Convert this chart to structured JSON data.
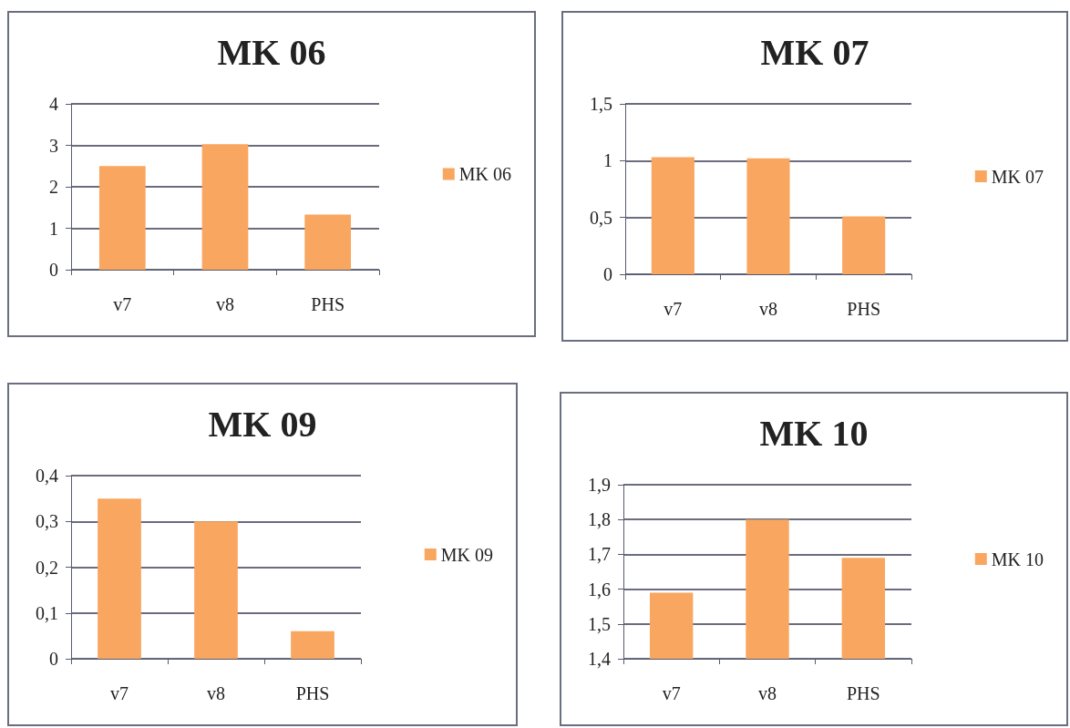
{
  "chart_data": [
    {
      "type": "bar",
      "title": "MK 06",
      "categories": [
        "v7",
        "v8",
        "PHS"
      ],
      "series": [
        {
          "name": "MK 06",
          "color": "#f9a660",
          "values": [
            2.5,
            3.03,
            1.33
          ]
        }
      ],
      "ylim": [
        0,
        4
      ],
      "yticks": [
        0,
        1,
        2,
        3,
        4
      ],
      "grid": "y",
      "legend": "right"
    },
    {
      "type": "bar",
      "title": "MK 07",
      "categories": [
        "v7",
        "v8",
        "PHS"
      ],
      "series": [
        {
          "name": "MK 07",
          "color": "#f9a660",
          "values": [
            1.03,
            1.02,
            0.51
          ]
        }
      ],
      "ylim": [
        0,
        1.5
      ],
      "yticks": [
        0,
        {
          "value": 0.5,
          "label": "0,5"
        },
        1,
        {
          "value": 1.5,
          "label": "1,5"
        }
      ],
      "grid": "y",
      "legend": "right"
    },
    {
      "type": "bar",
      "title": "MK 09",
      "categories": [
        "v7",
        "v8",
        "PHS"
      ],
      "series": [
        {
          "name": "MK 09",
          "color": "#f9a660",
          "values": [
            0.35,
            0.3,
            0.06
          ]
        }
      ],
      "ylim": [
        0,
        0.4
      ],
      "yticks": [
        0,
        {
          "value": 0.1,
          "label": "0,1"
        },
        {
          "value": 0.2,
          "label": "0,2"
        },
        {
          "value": 0.3,
          "label": "0,3"
        },
        {
          "value": 0.4,
          "label": "0,4"
        }
      ],
      "grid": "y",
      "legend": "right"
    },
    {
      "type": "bar",
      "title": "MK 10",
      "categories": [
        "v7",
        "v8",
        "PHS"
      ],
      "series": [
        {
          "name": "MK 10",
          "color": "#f9a660",
          "values": [
            1.59,
            1.8,
            1.69
          ]
        }
      ],
      "ylim": [
        1.4,
        1.9
      ],
      "yticks": [
        {
          "value": 1.4,
          "label": "1,4"
        },
        {
          "value": 1.5,
          "label": "1,5"
        },
        {
          "value": 1.6,
          "label": "1,6"
        },
        {
          "value": 1.7,
          "label": "1,7"
        },
        {
          "value": 1.8,
          "label": "1,8"
        },
        {
          "value": 1.9,
          "label": "1,9"
        }
      ],
      "grid": "y",
      "legend": "right"
    }
  ]
}
